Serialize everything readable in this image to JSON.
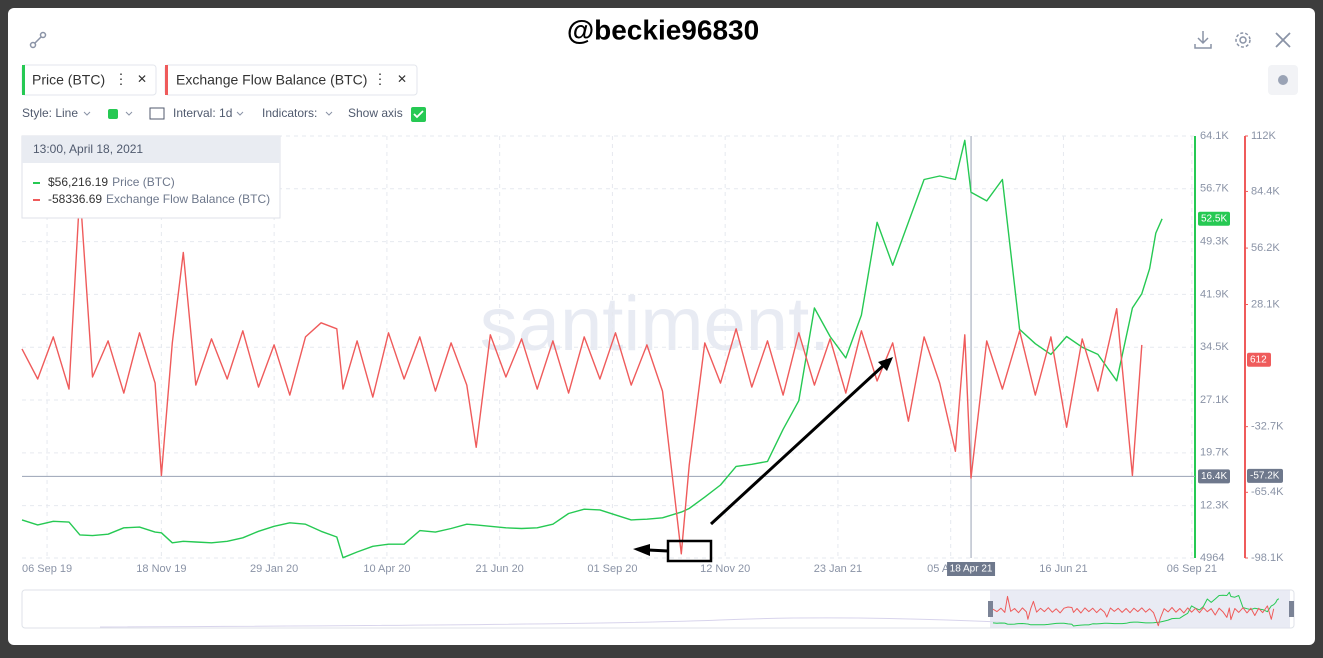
{
  "header": {
    "watermark": "@beckie96830",
    "toolbar": {
      "style": "Style: Line",
      "interval": "Interval: 1d",
      "indicators": "Indicators:",
      "show_axis": "Show axis"
    }
  },
  "chart_data": {
    "type": "line",
    "watermark": "santiment.",
    "x": [
      "2019-08-21",
      "2019-08-31",
      "2019-09-10",
      "2019-09-20",
      "2019-09-27",
      "2019-10-05",
      "2019-10-15",
      "2019-10-25",
      "2019-11-04",
      "2019-11-14",
      "2019-11-18",
      "2019-11-25",
      "2019-12-02",
      "2019-12-10",
      "2019-12-20",
      "2019-12-30",
      "2020-01-09",
      "2020-01-19",
      "2020-01-29",
      "2020-02-08",
      "2020-02-18",
      "2020-02-28",
      "2020-03-09",
      "2020-03-13",
      "2020-03-22",
      "2020-04-01",
      "2020-04-11",
      "2020-04-21",
      "2020-05-01",
      "2020-05-11",
      "2020-05-21",
      "2020-05-31",
      "2020-06-06",
      "2020-06-15",
      "2020-06-25",
      "2020-07-05",
      "2020-07-15",
      "2020-07-25",
      "2020-08-04",
      "2020-08-14",
      "2020-08-24",
      "2020-09-03",
      "2020-09-13",
      "2020-09-23",
      "2020-10-03",
      "2020-10-15",
      "2020-10-20",
      "2020-10-30",
      "2020-11-09",
      "2020-11-19",
      "2020-11-29",
      "2020-12-09",
      "2020-12-19",
      "2020-12-29",
      "2021-01-08",
      "2021-01-18",
      "2021-01-28",
      "2021-02-07",
      "2021-02-17",
      "2021-02-27",
      "2021-03-09",
      "2021-03-19",
      "2021-03-29",
      "2021-04-08",
      "2021-04-14",
      "2021-04-18",
      "2021-04-28",
      "2021-05-08",
      "2021-05-19",
      "2021-05-29",
      "2021-06-08",
      "2021-06-18",
      "2021-06-28",
      "2021-07-08",
      "2021-07-20",
      "2021-07-30",
      "2021-08-05",
      "2021-08-10",
      "2021-08-14",
      "2021-08-18"
    ],
    "xlim": [
      "2019-08-21",
      "2021-09-08"
    ],
    "xticks": [
      {
        "value": "2019-09-06",
        "label": "06 Sep 19"
      },
      {
        "value": "2019-11-18",
        "label": "18 Nov 19"
      },
      {
        "value": "2020-01-29",
        "label": "29 Jan 20"
      },
      {
        "value": "2020-04-10",
        "label": "10 Apr 20"
      },
      {
        "value": "2020-06-21",
        "label": "21 Jun 20"
      },
      {
        "value": "2020-09-01",
        "label": "01 Sep 20"
      },
      {
        "value": "2020-11-12",
        "label": "12 Nov 20"
      },
      {
        "value": "2021-01-23",
        "label": "23 Jan 21"
      },
      {
        "value": "2021-04-05",
        "label": "05 Apr 21"
      },
      {
        "value": "2021-06-16",
        "label": "16 Jun 21"
      },
      {
        "value": "2021-09-06",
        "label": "06 Sep 21"
      }
    ],
    "ylim": [
      4964,
      64100
    ],
    "yticks": [
      4964,
      {
        "value": 12300,
        "label": "12.3K"
      },
      {
        "value": 19700,
        "label": "19.7K"
      },
      {
        "value": 27100,
        "label": "27.1K"
      },
      {
        "value": 34500,
        "label": "34.5K"
      },
      {
        "value": 41900,
        "label": "41.9K"
      },
      {
        "value": 49300,
        "label": "49.3K"
      },
      {
        "value": 56700,
        "label": "56.7K"
      },
      {
        "value": 64100,
        "label": "64.1K"
      }
    ],
    "y2lim": [
      -98100,
      112000
    ],
    "y2ticks": [
      {
        "value": -98100,
        "label": "-98.1K"
      },
      {
        "value": -65400,
        "label": "-65.4K"
      },
      {
        "value": -32700,
        "label": "-32.7K"
      },
      {
        "value": 28100,
        "label": "28.1K"
      },
      {
        "value": 56200,
        "label": "56.2K"
      },
      {
        "value": 84400,
        "label": "84.4K"
      },
      {
        "value": 112000,
        "label": "112K"
      }
    ],
    "grid": true,
    "series": [
      {
        "name": "Price (BTC)",
        "color": "#26c953",
        "values": [
          10300,
          9600,
          10100,
          10000,
          8200,
          8100,
          8300,
          9200,
          9300,
          8600,
          8500,
          7100,
          7300,
          7200,
          7100,
          7300,
          7800,
          8700,
          9400,
          9900,
          9700,
          8700,
          7900,
          5000,
          5800,
          6600,
          6900,
          6900,
          8800,
          8600,
          9100,
          9700,
          9600,
          9400,
          9200,
          9100,
          9200,
          9700,
          11200,
          11800,
          11700,
          11000,
          10300,
          10400,
          10600,
          11400,
          11900,
          13500,
          15200,
          17800,
          18100,
          18500,
          23000,
          27000,
          40000,
          36000,
          33000,
          39000,
          52000,
          46000,
          52000,
          58000,
          58500,
          58000,
          63500,
          56216.19,
          55000,
          58000,
          37000,
          35000,
          33500,
          36000,
          34500,
          33500,
          29800,
          40000,
          42000,
          45500,
          50500,
          52500
        ]
      },
      {
        "name": "Exchange Flow Balance (BTC)",
        "color": "#ef5b5b",
        "axis": "y2",
        "values": [
          6000,
          -9000,
          12000,
          -14000,
          85000,
          -8000,
          10000,
          -16000,
          14000,
          -11000,
          -57000,
          9000,
          54000,
          -12000,
          11000,
          -9000,
          15000,
          -13000,
          8000,
          -17000,
          12000,
          19000,
          16000,
          -14000,
          10000,
          -18000,
          14000,
          -9000,
          12000,
          -15000,
          9000,
          -12000,
          -43000,
          13000,
          -8000,
          11000,
          -14000,
          10000,
          -16000,
          12000,
          -9000,
          14000,
          -12000,
          8000,
          -15000,
          -96000,
          -52000,
          9000,
          -11000,
          16000,
          -13000,
          10000,
          -17000,
          14000,
          -12000,
          11000,
          -16000,
          15000,
          -10000,
          9000,
          -30000,
          12000,
          -11000,
          -45000,
          13000,
          -58336.69,
          10000,
          -14000,
          15000,
          -17000,
          12000,
          -33000,
          11000,
          -15000,
          26000,
          -57000,
          8000,
          null,
          null,
          null
        ]
      }
    ],
    "tooltip": {
      "title": "13:00, April 18, 2021",
      "value_labels": [
        "$56,216.19",
        "-58336.69"
      ]
    },
    "markers": {
      "price_last": {
        "value": 52500,
        "label": "52.5K"
      },
      "flow_last": 612,
      "crosshair_x": {
        "value": "2021-04-18",
        "label": "18 Apr 21"
      },
      "crosshair_price": {
        "value": 16400,
        "label": "16.4K"
      },
      "crosshair_flow": {
        "value": -57200,
        "label": "-57.2K"
      }
    }
  }
}
